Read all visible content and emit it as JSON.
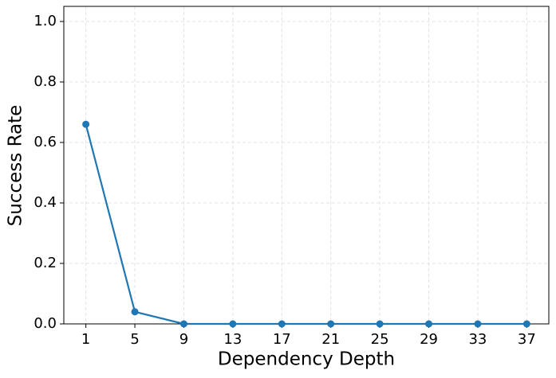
{
  "chart_data": {
    "type": "line",
    "x_label": "Dependency Depth",
    "y_label": "Success Rate",
    "x": [
      1,
      5,
      9,
      13,
      17,
      21,
      25,
      29,
      33,
      37
    ],
    "series": [
      {
        "name": "Success Rate",
        "color": "#1f77b4",
        "values": [
          0.66,
          0.04,
          0,
          0,
          0,
          0,
          0,
          0,
          0,
          0
        ]
      }
    ],
    "xlim": [
      -0.8,
      38.8
    ],
    "xticks": [
      1,
      5,
      9,
      13,
      17,
      21,
      25,
      29,
      33,
      37
    ],
    "ylim": [
      0,
      1.05
    ],
    "yticks": [
      {
        "value": 0,
        "label": "0.0"
      },
      0.2,
      0.4,
      0.6,
      0.8,
      {
        "value": 1,
        "label": "1.0"
      }
    ],
    "grid": true
  }
}
